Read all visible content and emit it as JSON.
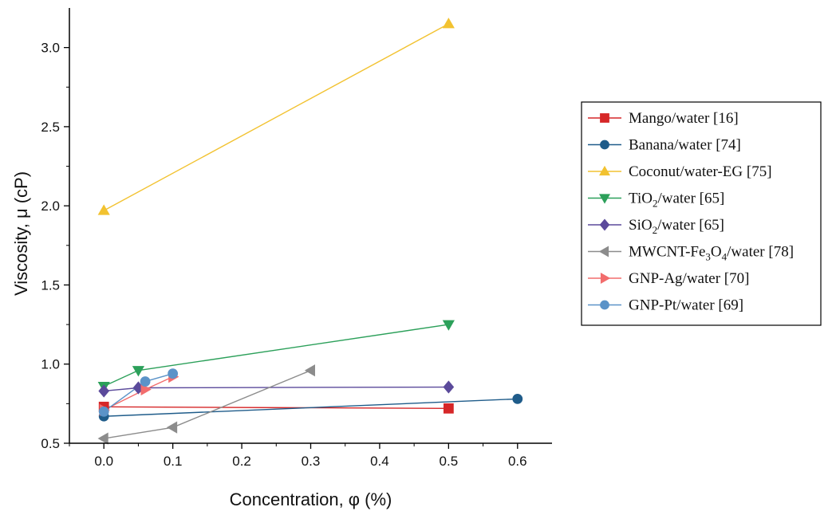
{
  "chart_data": {
    "type": "line",
    "title": "",
    "xlabel": "Concentration, φ (%)",
    "ylabel": "Viscosity, μ (cP)",
    "xlim": [
      -0.05,
      0.65
    ],
    "ylim": [
      0.5,
      3.25
    ],
    "xticks": [
      0.0,
      0.1,
      0.2,
      0.3,
      0.4,
      0.5,
      0.6
    ],
    "xtick_labels": [
      "0.0",
      "0.1",
      "0.2",
      "0.3",
      "0.4",
      "0.5",
      "0.6"
    ],
    "yticks": [
      0.5,
      1.0,
      1.5,
      2.0,
      2.5,
      3.0
    ],
    "ytick_labels": [
      "0.5",
      "1.0",
      "1.5",
      "2.0",
      "2.5",
      "3.0"
    ],
    "grid": false,
    "legend_position": "right",
    "series": [
      {
        "name": "Mango/water [16]",
        "name_parts": [
          {
            "t": "Mango/water [16]"
          }
        ],
        "color": "#d62728",
        "marker": "square",
        "points": [
          [
            0.0,
            0.73
          ],
          [
            0.5,
            0.72
          ]
        ]
      },
      {
        "name": "Banana/water [74]",
        "name_parts": [
          {
            "t": "Banana/water [74]"
          }
        ],
        "color": "#1f5c8a",
        "marker": "circle",
        "points": [
          [
            0.0,
            0.67
          ],
          [
            0.6,
            0.78
          ]
        ]
      },
      {
        "name": "Coconut/water-EG [75]",
        "name_parts": [
          {
            "t": "Coconut/water-EG [75]"
          }
        ],
        "color": "#f2c230",
        "marker": "triangle-up",
        "points": [
          [
            0.0,
            1.97
          ],
          [
            0.5,
            3.15
          ]
        ]
      },
      {
        "name": "TiO2/water [65]",
        "name_parts": [
          {
            "t": "TiO"
          },
          {
            "t": "2",
            "sub": true
          },
          {
            "t": "/water [65]"
          }
        ],
        "color": "#2ca05a",
        "marker": "triangle-down",
        "points": [
          [
            0.0,
            0.86
          ],
          [
            0.05,
            0.96
          ],
          [
            0.5,
            1.25
          ]
        ]
      },
      {
        "name": "SiO2/water [65]",
        "name_parts": [
          {
            "t": "SiO"
          },
          {
            "t": "2",
            "sub": true
          },
          {
            "t": "/water [65]"
          }
        ],
        "color": "#5b4a9b",
        "marker": "diamond",
        "points": [
          [
            0.0,
            0.83
          ],
          [
            0.05,
            0.85
          ],
          [
            0.5,
            0.855
          ]
        ]
      },
      {
        "name": "MWCNT-Fe3O4/water [78]",
        "name_parts": [
          {
            "t": "MWCNT-Fe"
          },
          {
            "t": "3",
            "sub": true
          },
          {
            "t": "O"
          },
          {
            "t": "4",
            "sub": true
          },
          {
            "t": "/water [78]"
          }
        ],
        "color": "#8c8c8c",
        "marker": "triangle-left",
        "points": [
          [
            0.0,
            0.53
          ],
          [
            0.1,
            0.6
          ],
          [
            0.3,
            0.96
          ]
        ]
      },
      {
        "name": "GNP-Ag/water [70]",
        "name_parts": [
          {
            "t": "GNP-Ag/water [70]"
          }
        ],
        "color": "#f26d6d",
        "marker": "triangle-right",
        "points": [
          [
            0.0,
            0.71
          ],
          [
            0.06,
            0.84
          ],
          [
            0.1,
            0.92
          ]
        ]
      },
      {
        "name": "GNP-Pt/water [69]",
        "name_parts": [
          {
            "t": "GNP-Pt/water [69]"
          }
        ],
        "color": "#5b93c8",
        "marker": "circle",
        "points": [
          [
            0.0,
            0.7
          ],
          [
            0.06,
            0.89
          ],
          [
            0.1,
            0.94
          ]
        ]
      }
    ]
  }
}
